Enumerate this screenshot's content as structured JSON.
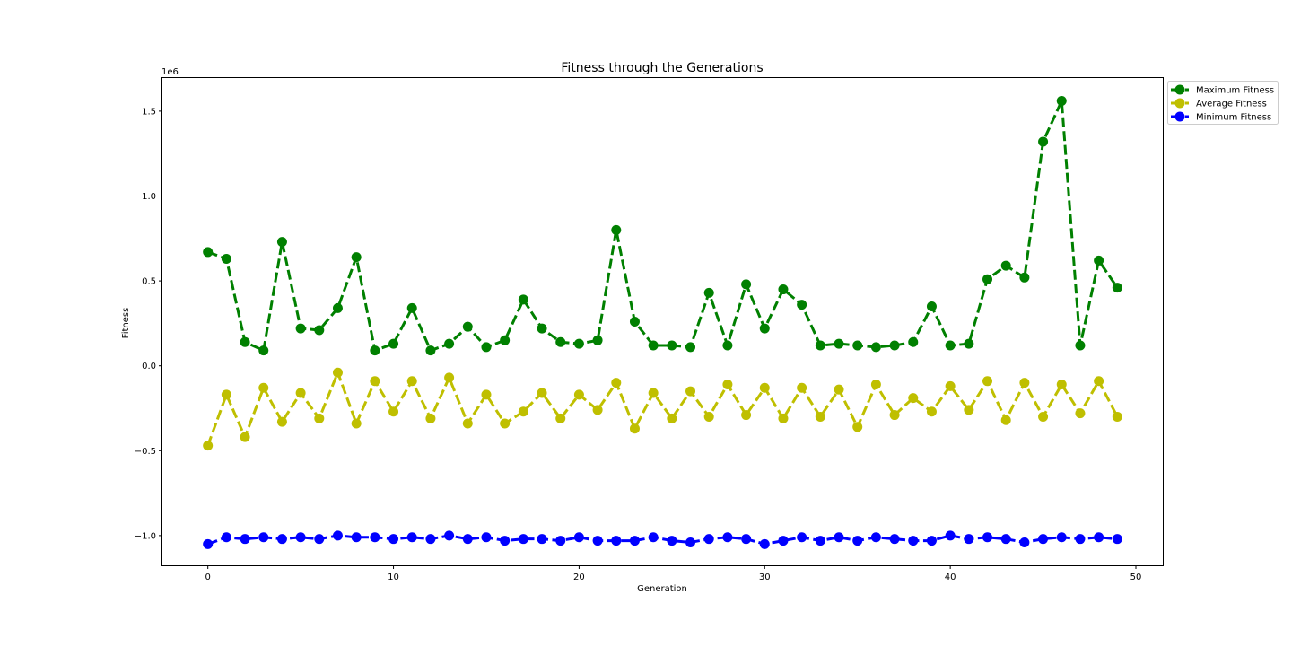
{
  "chart_data": {
    "type": "line",
    "title": "Fitness through the Generations",
    "xlabel": "Generation",
    "ylabel": "Fitness",
    "y_offset_label": "1e6",
    "xlim": [
      -2.45,
      51.45
    ],
    "ylim": [
      -1.175,
      1.695
    ],
    "x_ticks": [
      0,
      10,
      20,
      30,
      40,
      50
    ],
    "x_tick_labels": [
      "0",
      "10",
      "20",
      "30",
      "40",
      "50"
    ],
    "y_ticks": [
      -1.0,
      -0.5,
      0.0,
      0.5,
      1.0,
      1.5
    ],
    "y_tick_labels": [
      "−1.0",
      "−0.5",
      "0.0",
      "0.5",
      "1.0",
      "1.5"
    ],
    "grid": false,
    "legend_position": "outside-upper-right",
    "x": [
      0,
      1,
      2,
      3,
      4,
      5,
      6,
      7,
      8,
      9,
      10,
      11,
      12,
      13,
      14,
      15,
      16,
      17,
      18,
      19,
      20,
      21,
      22,
      23,
      24,
      25,
      26,
      27,
      28,
      29,
      30,
      31,
      32,
      33,
      34,
      35,
      36,
      37,
      38,
      39,
      40,
      41,
      42,
      43,
      44,
      45,
      46,
      47,
      48,
      49
    ],
    "series": [
      {
        "name": "Maximum Fitness",
        "color": "#008000",
        "values": [
          0.67,
          0.63,
          0.14,
          0.09,
          0.73,
          0.22,
          0.21,
          0.34,
          0.64,
          0.09,
          0.13,
          0.34,
          0.09,
          0.13,
          0.23,
          0.11,
          0.15,
          0.39,
          0.22,
          0.14,
          0.13,
          0.15,
          0.8,
          0.26,
          0.12,
          0.12,
          0.11,
          0.43,
          0.12,
          0.48,
          0.22,
          0.45,
          0.36,
          0.12,
          0.13,
          0.12,
          0.11,
          0.12,
          0.14,
          0.35,
          0.12,
          0.13,
          0.51,
          0.59,
          0.52,
          1.32,
          1.56,
          0.12,
          0.62,
          0.46
        ]
      },
      {
        "name": "Average Fitness",
        "color": "#bfbf00",
        "values": [
          -0.47,
          -0.17,
          -0.42,
          -0.13,
          -0.33,
          -0.16,
          -0.31,
          -0.04,
          -0.34,
          -0.09,
          -0.27,
          -0.09,
          -0.31,
          -0.07,
          -0.34,
          -0.17,
          -0.34,
          -0.27,
          -0.16,
          -0.31,
          -0.17,
          -0.26,
          -0.1,
          -0.37,
          -0.16,
          -0.31,
          -0.15,
          -0.3,
          -0.11,
          -0.29,
          -0.13,
          -0.31,
          -0.13,
          -0.3,
          -0.14,
          -0.36,
          -0.11,
          -0.29,
          -0.19,
          -0.27,
          -0.12,
          -0.26,
          -0.09,
          -0.32,
          -0.1,
          -0.3,
          -0.11,
          -0.28,
          -0.09,
          -0.3
        ]
      },
      {
        "name": "Minimum Fitness",
        "color": "#0000ff",
        "values": [
          -1.05,
          -1.01,
          -1.02,
          -1.01,
          -1.02,
          -1.01,
          -1.02,
          -1.0,
          -1.01,
          -1.01,
          -1.02,
          -1.01,
          -1.02,
          -1.0,
          -1.02,
          -1.01,
          -1.03,
          -1.02,
          -1.02,
          -1.03,
          -1.01,
          -1.03,
          -1.03,
          -1.03,
          -1.01,
          -1.03,
          -1.04,
          -1.02,
          -1.01,
          -1.02,
          -1.05,
          -1.03,
          -1.01,
          -1.03,
          -1.01,
          -1.03,
          -1.01,
          -1.02,
          -1.03,
          -1.03,
          -1.0,
          -1.02,
          -1.01,
          -1.02,
          -1.04,
          -1.02,
          -1.01,
          -1.02,
          -1.01,
          -1.02
        ]
      }
    ]
  }
}
